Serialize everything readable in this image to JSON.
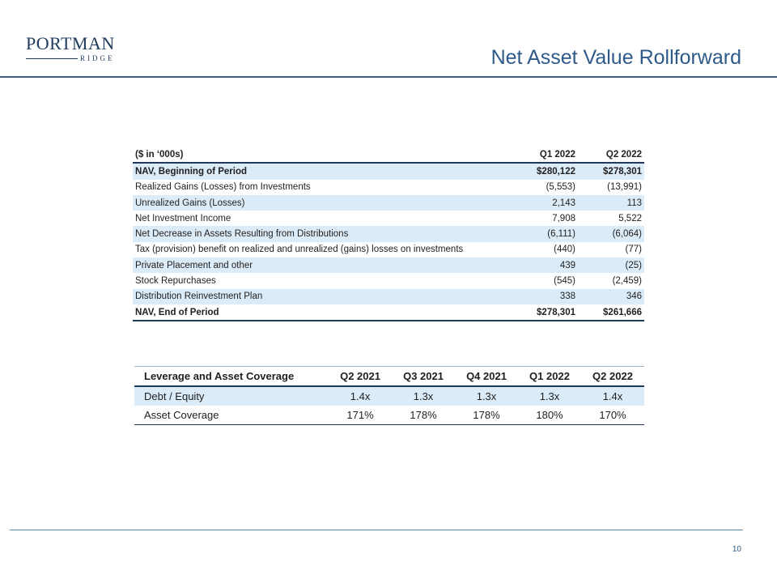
{
  "header": {
    "logo_main": "PORTMAN",
    "logo_sub": "RIDGE",
    "title": "Net Asset Value Rollforward"
  },
  "nav_table": {
    "columns": [
      "($ in ‘000s)",
      "Q1 2022",
      "Q2 2022"
    ],
    "rows": [
      {
        "label": "NAV, Beginning of Period",
        "q1": "$280,122",
        "q2": "$278,301"
      },
      {
        "label": "Realized Gains (Losses) from Investments",
        "q1": "(5,553)",
        "q2": "(13,991)"
      },
      {
        "label": "Unrealized Gains (Losses)",
        "q1": "2,143",
        "q2": "113"
      },
      {
        "label": "Net Investment Income",
        "q1": "7,908",
        "q2": "5,522"
      },
      {
        "label": "Net Decrease in Assets Resulting from Distributions",
        "q1": "(6,111)",
        "q2": "(6,064)"
      },
      {
        "label": "Tax (provision) benefit on realized and unrealized (gains) losses on investments",
        "q1": "(440)",
        "q2": "(77)"
      },
      {
        "label": "Private Placement and other",
        "q1": "439",
        "q2": "(25)"
      },
      {
        "label": "Stock Repurchases",
        "q1": "(545)",
        "q2": "(2,459)"
      },
      {
        "label": "Distribution Reinvestment Plan",
        "q1": "338",
        "q2": "346"
      },
      {
        "label": "NAV, End of Period",
        "q1": "$278,301",
        "q2": "$261,666"
      }
    ]
  },
  "leverage_table": {
    "columns": [
      "Leverage and Asset Coverage",
      "Q2 2021",
      "Q3 2021",
      "Q4 2021",
      "Q1 2022",
      "Q2 2022"
    ],
    "rows": [
      {
        "label": "Debt / Equity",
        "values": [
          "1.4x",
          "1.3x",
          "1.3x",
          "1.3x",
          "1.4x"
        ]
      },
      {
        "label": "Asset Coverage",
        "values": [
          "171%",
          "178%",
          "178%",
          "180%",
          "170%"
        ]
      }
    ]
  },
  "footer": {
    "page_number": "10"
  },
  "colors": {
    "navy": "#1f3a5b",
    "title_blue": "#2e5a8a",
    "row_shade": "#dcebf8"
  }
}
